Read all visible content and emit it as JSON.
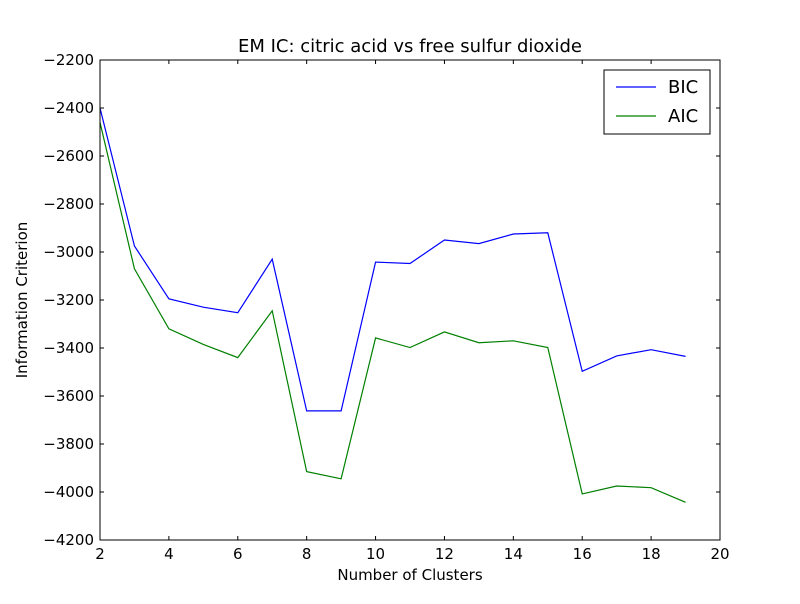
{
  "chart_data": {
    "type": "line",
    "title": "EM IC: citric acid vs free sulfur dioxide",
    "xlabel": "Number of Clusters",
    "ylabel": "Information Criterion",
    "xlim": [
      2,
      20
    ],
    "ylim": [
      -4200,
      -2200
    ],
    "xticks": [
      2,
      4,
      6,
      8,
      10,
      12,
      14,
      16,
      18,
      20
    ],
    "yticks": [
      -2200,
      -2400,
      -2600,
      -2800,
      -3000,
      -3200,
      -3400,
      -3600,
      -3800,
      -4000,
      -4200
    ],
    "grid": false,
    "legend_position": "top-right",
    "x": [
      2,
      3,
      4,
      5,
      6,
      7,
      8,
      9,
      10,
      11,
      12,
      13,
      14,
      15,
      16,
      17,
      18,
      19
    ],
    "series": [
      {
        "name": "BIC",
        "color": "#0000ff",
        "values": [
          -2400,
          -2975,
          -3195,
          -3230,
          -3253,
          -3030,
          -3662,
          -3662,
          -3042,
          -3048,
          -2950,
          -2965,
          -2925,
          -2920,
          -3497,
          -3433,
          -3407,
          -3435
        ]
      },
      {
        "name": "AIC",
        "color": "#008000",
        "values": [
          -2460,
          -3070,
          -3320,
          -3385,
          -3440,
          -3245,
          -3915,
          -3945,
          -3358,
          -3398,
          -3333,
          -3378,
          -3370,
          -3398,
          -4008,
          -3975,
          -3982,
          -4043
        ]
      }
    ]
  }
}
